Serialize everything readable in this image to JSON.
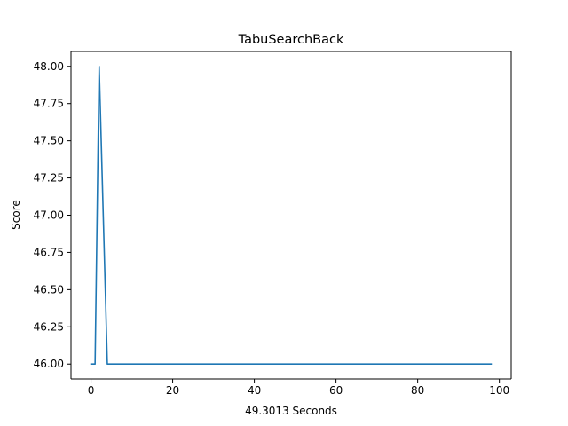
{
  "chart_data": {
    "type": "line",
    "title": "TabuSearchBack",
    "xlabel": "49.3013 Seconds",
    "ylabel": "Score",
    "xlim": [
      -4.9,
      102.9
    ],
    "ylim": [
      45.9,
      48.1
    ],
    "xticks": [
      0,
      20,
      40,
      60,
      80,
      100
    ],
    "xtick_labels": [
      "0",
      "20",
      "40",
      "60",
      "80",
      "100"
    ],
    "yticks": [
      46.0,
      46.25,
      46.5,
      46.75,
      47.0,
      47.25,
      47.5,
      47.75,
      48.0
    ],
    "ytick_labels": [
      "46.00",
      "46.25",
      "46.50",
      "46.75",
      "47.00",
      "47.25",
      "47.50",
      "47.75",
      "48.00"
    ],
    "grid": false,
    "legend": "none",
    "series": [
      {
        "color": "#1f77b4",
        "x": [
          0,
          1,
          2,
          3,
          4,
          98
        ],
        "y": [
          46.0,
          46.0,
          48.0,
          47.0,
          46.0,
          46.0
        ]
      }
    ]
  }
}
